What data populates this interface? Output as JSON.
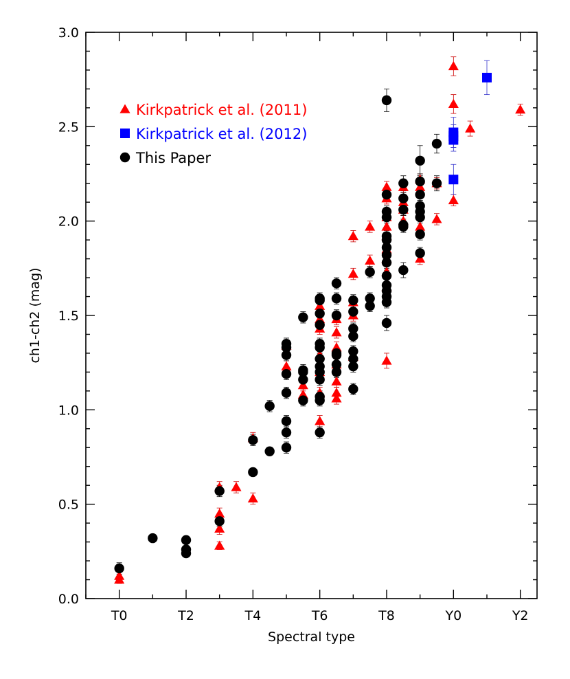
{
  "chart_data": {
    "type": "scatter",
    "xlabel": "Spectral type",
    "ylabel": "ch1-ch2 (mag)",
    "xlim": [
      -1,
      12.5
    ],
    "ylim": [
      0.0,
      3.0
    ],
    "x_ticks": [
      {
        "value": 0,
        "label": "T0"
      },
      {
        "value": 2,
        "label": "T2"
      },
      {
        "value": 4,
        "label": "T4"
      },
      {
        "value": 6,
        "label": "T6"
      },
      {
        "value": 8,
        "label": "T8"
      },
      {
        "value": 10,
        "label": "Y0"
      },
      {
        "value": 12,
        "label": "Y2"
      }
    ],
    "y_ticks": [
      {
        "value": 0.0,
        "label": "0.0"
      },
      {
        "value": 0.5,
        "label": "0.5"
      },
      {
        "value": 1.0,
        "label": "1.0"
      },
      {
        "value": 1.5,
        "label": "1.5"
      },
      {
        "value": 2.0,
        "label": "2.0"
      },
      {
        "value": 2.5,
        "label": "2.5"
      },
      {
        "value": 3.0,
        "label": "3.0"
      }
    ],
    "legend_position": "top-left",
    "series": [
      {
        "name": "Kirkpatrick et al. (2011)",
        "marker": "triangle",
        "color": "#ff0000",
        "points": [
          [
            0,
            0.12,
            0.02
          ],
          [
            0,
            0.1,
            0.02
          ],
          [
            3,
            0.45,
            0.03
          ],
          [
            3,
            0.37,
            0.03
          ],
          [
            3,
            0.28,
            0.02
          ],
          [
            3,
            0.59,
            0.03
          ],
          [
            3.5,
            0.59,
            0.03
          ],
          [
            4,
            0.53,
            0.03
          ],
          [
            4,
            0.85,
            0.03
          ],
          [
            5,
            1.23,
            0.03
          ],
          [
            5,
            1.34,
            0.03
          ],
          [
            5.5,
            1.13,
            0.03
          ],
          [
            5.5,
            1.08,
            0.03
          ],
          [
            6,
            1.55,
            0.03
          ],
          [
            6,
            1.48,
            0.03
          ],
          [
            6,
            1.43,
            0.03
          ],
          [
            6,
            1.29,
            0.03
          ],
          [
            6,
            1.2,
            0.03
          ],
          [
            6,
            1.09,
            0.03
          ],
          [
            6,
            0.94,
            0.03
          ],
          [
            6.5,
            1.48,
            0.03
          ],
          [
            6.5,
            1.41,
            0.03
          ],
          [
            6.5,
            1.33,
            0.03
          ],
          [
            6.5,
            1.15,
            0.03
          ],
          [
            6.5,
            1.09,
            0.03
          ],
          [
            6.5,
            1.06,
            0.03
          ],
          [
            6.5,
            1.24,
            0.03
          ],
          [
            7,
            1.92,
            0.03
          ],
          [
            7,
            1.72,
            0.03
          ],
          [
            7,
            1.57,
            0.03
          ],
          [
            7,
            1.5,
            0.03
          ],
          [
            7,
            1.28,
            0.03
          ],
          [
            7.5,
            1.97,
            0.03
          ],
          [
            7.5,
            1.79,
            0.03
          ],
          [
            8,
            2.18,
            0.03
          ],
          [
            8,
            2.12,
            0.03
          ],
          [
            8,
            2.02,
            0.03
          ],
          [
            8,
            1.97,
            0.03
          ],
          [
            8,
            1.92,
            0.03
          ],
          [
            8,
            1.85,
            0.03
          ],
          [
            8,
            1.8,
            0.03
          ],
          [
            8,
            1.73,
            0.03
          ],
          [
            8,
            1.65,
            0.03
          ],
          [
            8,
            1.26,
            0.04
          ],
          [
            8.5,
            2.18,
            0.03
          ],
          [
            8.5,
            2.1,
            0.03
          ],
          [
            8.5,
            2.06,
            0.03
          ],
          [
            8.5,
            2.0,
            0.03
          ],
          [
            9,
            2.22,
            0.03
          ],
          [
            9,
            2.18,
            0.03
          ],
          [
            9,
            1.97,
            0.03
          ],
          [
            9,
            1.8,
            0.03
          ],
          [
            9.5,
            2.2,
            0.03
          ],
          [
            9.5,
            2.01,
            0.03
          ],
          [
            10,
            2.82,
            0.05
          ],
          [
            10,
            2.62,
            0.05
          ],
          [
            10,
            2.11,
            0.03
          ],
          [
            10.5,
            2.49,
            0.04
          ],
          [
            12,
            2.59,
            0.03
          ]
        ]
      },
      {
        "name": "Kirkpatrick et al. (2012)",
        "marker": "square",
        "color": "#0000ff",
        "points": [
          [
            10,
            2.47,
            0.08
          ],
          [
            10,
            2.43,
            0.06
          ],
          [
            10,
            2.45,
            0.06
          ],
          [
            10,
            2.22,
            0.08
          ],
          [
            11,
            2.76,
            0.09
          ]
        ]
      },
      {
        "name": "This Paper",
        "marker": "circle",
        "color": "#000000",
        "points": [
          [
            0,
            0.16,
            0.03
          ],
          [
            1,
            0.32,
            0.02
          ],
          [
            2,
            0.31,
            0.02
          ],
          [
            2,
            0.26,
            0.02
          ],
          [
            2,
            0.24,
            0.02
          ],
          [
            3,
            0.57,
            0.03
          ],
          [
            3,
            0.41,
            0.03
          ],
          [
            4,
            0.84,
            0.03
          ],
          [
            4,
            0.67,
            0.02
          ],
          [
            4.5,
            1.02,
            0.03
          ],
          [
            4.5,
            0.78,
            0.02
          ],
          [
            5,
            1.35,
            0.03
          ],
          [
            5,
            1.33,
            0.03
          ],
          [
            5,
            1.29,
            0.03
          ],
          [
            5,
            1.19,
            0.03
          ],
          [
            5,
            1.09,
            0.03
          ],
          [
            5,
            0.94,
            0.03
          ],
          [
            5,
            0.88,
            0.03
          ],
          [
            5,
            0.8,
            0.03
          ],
          [
            5.5,
            1.49,
            0.03
          ],
          [
            5.5,
            1.21,
            0.03
          ],
          [
            5.5,
            1.2,
            0.03
          ],
          [
            5.5,
            1.16,
            0.03
          ],
          [
            5.5,
            1.05,
            0.03
          ],
          [
            6,
            1.59,
            0.03
          ],
          [
            6,
            1.58,
            0.03
          ],
          [
            6,
            1.51,
            0.03
          ],
          [
            6,
            1.45,
            0.03
          ],
          [
            6,
            1.35,
            0.03
          ],
          [
            6,
            1.33,
            0.03
          ],
          [
            6,
            1.27,
            0.03
          ],
          [
            6,
            1.23,
            0.03
          ],
          [
            6,
            1.2,
            0.03
          ],
          [
            6,
            1.16,
            0.03
          ],
          [
            6,
            1.07,
            0.03
          ],
          [
            6,
            1.05,
            0.03
          ],
          [
            6,
            0.88,
            0.03
          ],
          [
            6.5,
            1.67,
            0.03
          ],
          [
            6.5,
            1.59,
            0.03
          ],
          [
            6.5,
            1.5,
            0.03
          ],
          [
            6.5,
            1.3,
            0.03
          ],
          [
            6.5,
            1.29,
            0.03
          ],
          [
            6.5,
            1.24,
            0.03
          ],
          [
            6.5,
            1.2,
            0.03
          ],
          [
            7,
            1.58,
            0.03
          ],
          [
            7,
            1.52,
            0.03
          ],
          [
            7,
            1.43,
            0.03
          ],
          [
            7,
            1.39,
            0.03
          ],
          [
            7,
            1.31,
            0.03
          ],
          [
            7,
            1.27,
            0.03
          ],
          [
            7,
            1.23,
            0.03
          ],
          [
            7,
            1.11,
            0.03
          ],
          [
            7.5,
            1.73,
            0.03
          ],
          [
            7.5,
            1.59,
            0.03
          ],
          [
            7.5,
            1.55,
            0.03
          ],
          [
            8,
            2.64,
            0.06
          ],
          [
            8,
            2.14,
            0.03
          ],
          [
            8,
            2.05,
            0.03
          ],
          [
            8,
            2.02,
            0.03
          ],
          [
            8,
            1.92,
            0.03
          ],
          [
            8,
            1.9,
            0.03
          ],
          [
            8,
            1.86,
            0.03
          ],
          [
            8,
            1.82,
            0.03
          ],
          [
            8,
            1.78,
            0.03
          ],
          [
            8,
            1.71,
            0.03
          ],
          [
            8,
            1.66,
            0.03
          ],
          [
            8,
            1.63,
            0.03
          ],
          [
            8,
            1.6,
            0.03
          ],
          [
            8,
            1.57,
            0.03
          ],
          [
            8,
            1.46,
            0.04
          ],
          [
            8.5,
            2.2,
            0.04
          ],
          [
            8.5,
            2.12,
            0.03
          ],
          [
            8.5,
            2.06,
            0.03
          ],
          [
            8.5,
            1.98,
            0.03
          ],
          [
            8.5,
            1.97,
            0.03
          ],
          [
            8.5,
            1.74,
            0.04
          ],
          [
            9,
            2.32,
            0.08
          ],
          [
            9,
            2.21,
            0.04
          ],
          [
            9,
            2.14,
            0.03
          ],
          [
            9,
            2.08,
            0.03
          ],
          [
            9,
            2.05,
            0.03
          ],
          [
            9,
            2.02,
            0.03
          ],
          [
            9,
            1.93,
            0.03
          ],
          [
            9,
            1.83,
            0.03
          ],
          [
            9.5,
            2.41,
            0.05
          ],
          [
            9.5,
            2.2,
            0.04
          ]
        ]
      }
    ]
  }
}
